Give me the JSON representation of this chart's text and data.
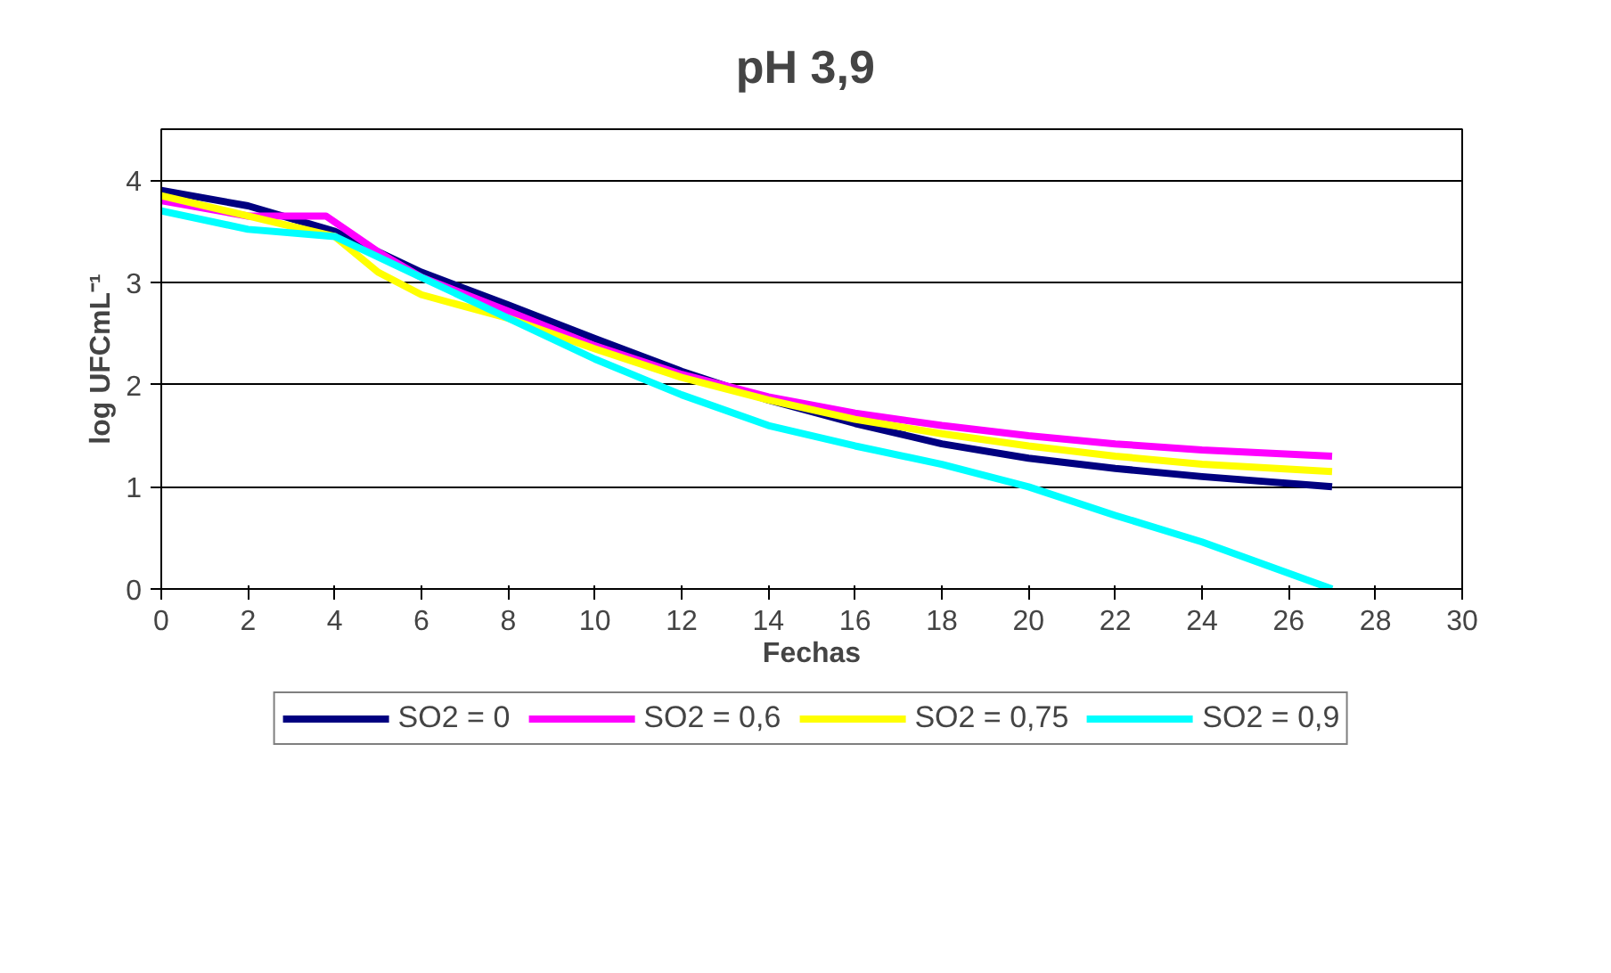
{
  "chart_data": {
    "type": "line",
    "title": "pH  3,9",
    "xlabel": "Fechas",
    "ylabel": "log UFCmL⁻¹",
    "xlim": [
      0,
      30
    ],
    "xticks": [
      0,
      2,
      4,
      6,
      8,
      10,
      12,
      14,
      16,
      18,
      20,
      22,
      24,
      26,
      28,
      30
    ],
    "ylim": [
      0,
      4.5
    ],
    "yticks": [
      0,
      1,
      2,
      3,
      4
    ],
    "grid": "y",
    "legend": "bottom",
    "marker": "none",
    "line_style": "solid",
    "series": [
      {
        "name": "SO2 = 0",
        "color": "#000080",
        "x": [
          0,
          2,
          4,
          6,
          8,
          10,
          12,
          14,
          16,
          18,
          20,
          22,
          24,
          27
        ],
        "values": [
          3.9,
          3.75,
          3.5,
          3.1,
          2.78,
          2.45,
          2.13,
          1.85,
          1.62,
          1.42,
          1.28,
          1.18,
          1.1,
          1.0
        ]
      },
      {
        "name": "SO2 = 0,6",
        "color": "#ff00ff",
        "x": [
          0,
          2,
          3.8,
          5,
          6,
          8,
          10,
          12,
          14,
          16,
          18,
          20,
          22,
          24,
          27
        ],
        "values": [
          3.8,
          3.65,
          3.65,
          3.3,
          3.05,
          2.72,
          2.38,
          2.1,
          1.88,
          1.72,
          1.6,
          1.5,
          1.42,
          1.36,
          1.3
        ]
      },
      {
        "name": "SO2 = 0,75",
        "color": "#ffff00",
        "x": [
          0,
          2,
          4,
          5,
          6,
          8,
          10,
          12,
          14,
          16,
          18,
          20,
          22,
          24,
          27
        ],
        "values": [
          3.85,
          3.65,
          3.45,
          3.1,
          2.88,
          2.65,
          2.35,
          2.07,
          1.85,
          1.66,
          1.52,
          1.4,
          1.3,
          1.22,
          1.15
        ]
      },
      {
        "name": "SO2 = 0,9",
        "color": "#00ffff",
        "x": [
          0,
          2,
          4,
          6,
          8,
          10,
          12,
          14,
          16,
          18,
          20,
          22,
          24,
          27
        ],
        "values": [
          3.7,
          3.52,
          3.45,
          3.05,
          2.65,
          2.25,
          1.9,
          1.6,
          1.4,
          1.22,
          1.0,
          0.72,
          0.46,
          0.0
        ]
      }
    ]
  }
}
